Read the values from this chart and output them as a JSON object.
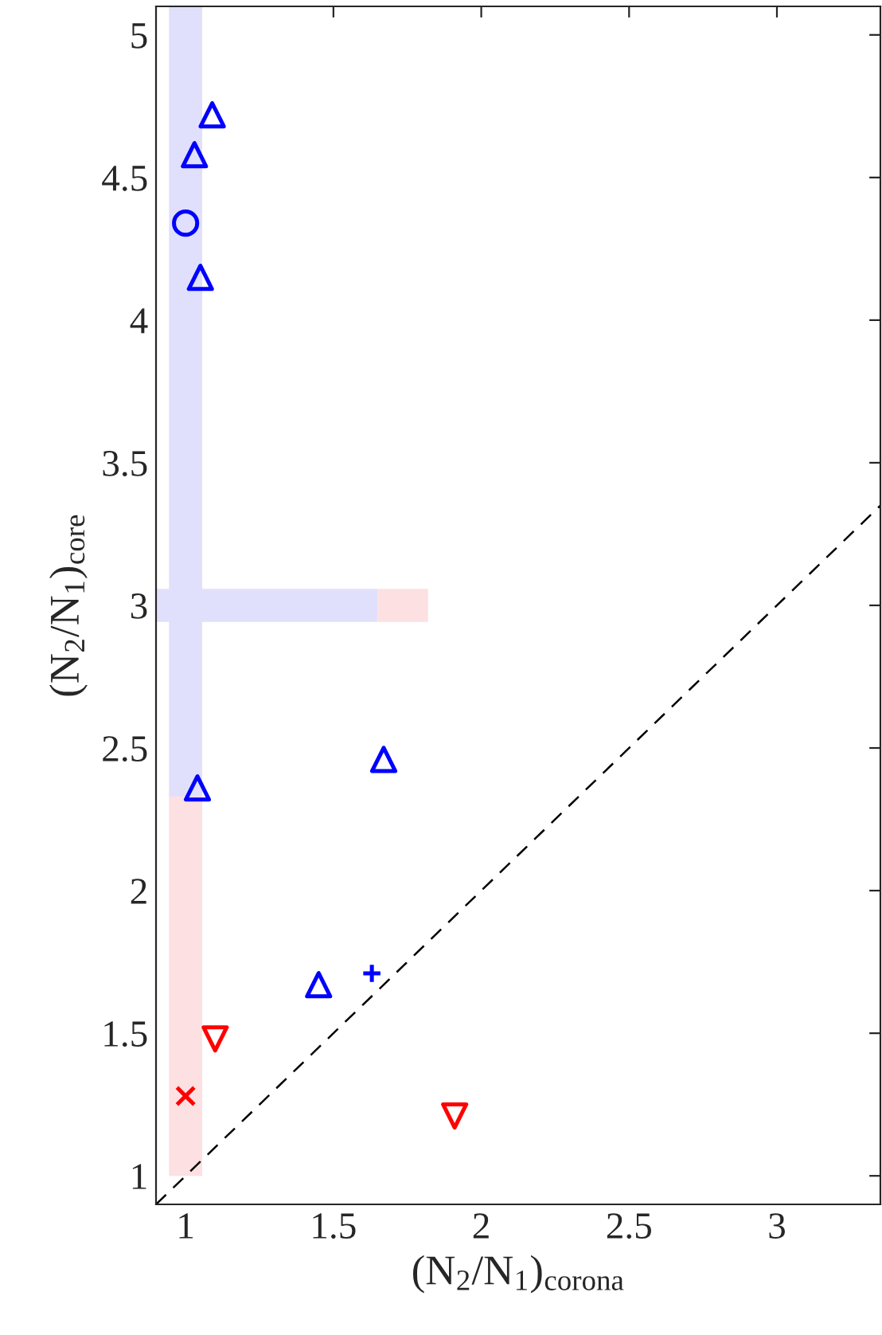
{
  "chart_data": {
    "type": "scatter",
    "xlabel": "(N$_{2}$/N$_{1}$)$_{corona}$",
    "ylabel": "(N$_{2}$/N$_{1}$)$_{core}$",
    "xlim": [
      0.9,
      3.35
    ],
    "ylim": [
      0.9,
      5.1
    ],
    "xticks": [
      1,
      1.5,
      2,
      2.5,
      3
    ],
    "yticks": [
      1,
      1.5,
      2,
      2.5,
      3,
      3.5,
      4,
      4.5,
      5
    ],
    "grid": false,
    "legend": false,
    "series": [
      {
        "type": "line",
        "color": "#e0e0fc",
        "x": [
          1.0,
          1.0
        ],
        "values": [
          2.33,
          5.1
        ]
      },
      {
        "type": "line",
        "color": "#fde0e2",
        "x": [
          1.0,
          1.0
        ],
        "values": [
          1.0,
          2.33
        ]
      },
      {
        "type": "line",
        "color": "#e0e0fc",
        "x": [
          0.9,
          1.65
        ],
        "values": [
          3.0,
          3.0
        ]
      },
      {
        "type": "line",
        "color": "#fde0e2",
        "x": [
          1.65,
          1.82
        ],
        "values": [
          3.0,
          3.0
        ]
      },
      {
        "type": "line",
        "color": "#000000",
        "line_style": "dashed",
        "x": [
          0.9,
          3.35
        ],
        "values": [
          0.9,
          3.35
        ]
      },
      {
        "color": "#0000ff",
        "marker": "triangle",
        "x": [
          1.09,
          1.03,
          1.05,
          1.04,
          1.67,
          1.45
        ],
        "values": [
          4.72,
          4.58,
          4.15,
          2.36,
          2.46,
          1.67
        ]
      },
      {
        "color": "#0000ff",
        "marker": "circle",
        "x": [
          1.0
        ],
        "values": [
          4.34
        ]
      },
      {
        "color": "#0000ff",
        "marker": "cross",
        "x": [
          1.63
        ],
        "values": [
          1.71
        ]
      },
      {
        "color": "#ff0000",
        "marker": "triangle_down",
        "x": [
          1.1,
          1.91
        ],
        "values": [
          1.48,
          1.21
        ]
      },
      {
        "color": "#ff0000",
        "marker": "x",
        "x": [
          1.0
        ],
        "values": [
          1.28
        ]
      }
    ]
  }
}
